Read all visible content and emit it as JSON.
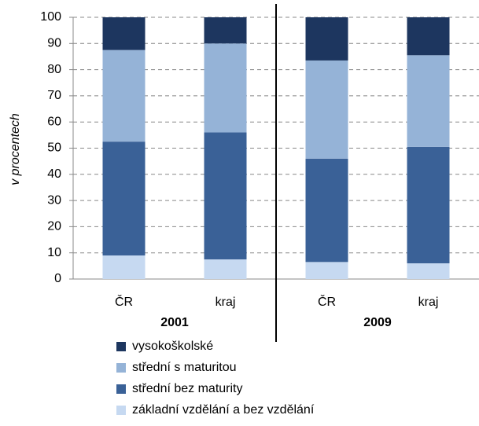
{
  "chart_data": {
    "type": "stacked_bar",
    "y_label": "v procentech",
    "categories": [
      "ČR",
      "kraj",
      "ČR",
      "kraj"
    ],
    "groups": [
      "2001",
      "2009"
    ],
    "series": [
      {
        "name": "základní vzdělání a bez vzdělání",
        "color": "#c6d9f1",
        "values": [
          9,
          7.5,
          6.5,
          6
        ]
      },
      {
        "name": "střední bez maturity",
        "color": "#3a6197",
        "values": [
          43.5,
          48.5,
          39.5,
          44.5
        ]
      },
      {
        "name": "střední s maturitou",
        "color": "#95b3d7",
        "values": [
          35,
          34,
          37.5,
          35
        ]
      },
      {
        "name": "vysokoškolské",
        "color": "#1d365f",
        "values": [
          12.5,
          10,
          16.5,
          14.5
        ]
      }
    ],
    "ylim": [
      0,
      100
    ],
    "yticks": [
      0,
      10,
      20,
      30,
      40,
      50,
      60,
      70,
      80,
      90,
      100
    ],
    "grid": true
  }
}
